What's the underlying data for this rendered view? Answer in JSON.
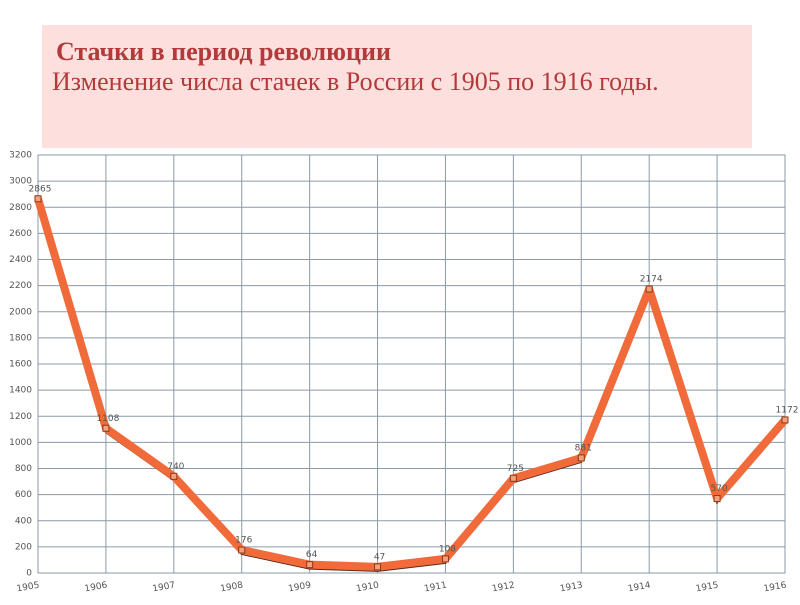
{
  "chart_data": {
    "type": "line",
    "title": "Стачки в период революции",
    "subtitle": "Изменение числа стачек в России с 1905 по 1916 годы.",
    "categories": [
      "1905",
      "1906",
      "1907",
      "1908",
      "1909",
      "1910",
      "1911",
      "1912",
      "1913",
      "1914",
      "1915",
      "1916"
    ],
    "values": [
      2865,
      1108,
      740,
      176,
      64,
      47,
      108,
      725,
      881,
      2174,
      570,
      1172
    ],
    "color": "#f06a3a",
    "ylim": [
      0,
      3200
    ],
    "yticks": [
      0,
      200,
      400,
      600,
      800,
      1000,
      1200,
      1400,
      1600,
      1800,
      2000,
      2200,
      2400,
      2600,
      2800,
      3000,
      3200
    ],
    "grid": true
  }
}
